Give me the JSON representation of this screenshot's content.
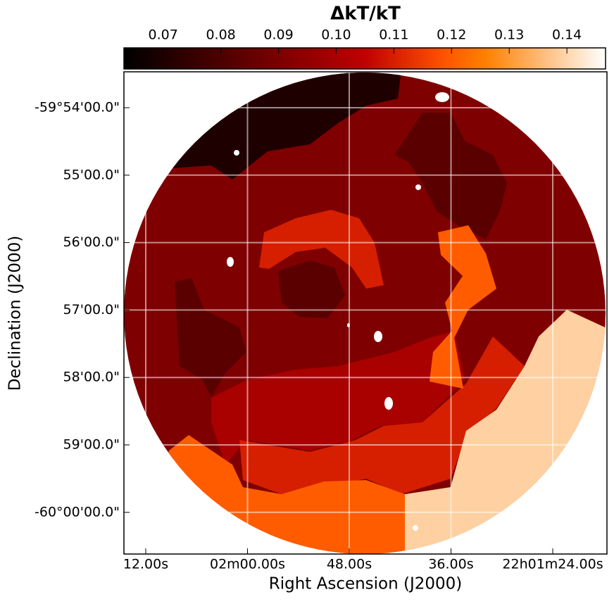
{
  "chart_data": {
    "type": "map",
    "xlabel": "Right Ascension (J2000)",
    "ylabel": "Declination (J2000)",
    "xtick_labels": [
      "12.00s",
      "02m00.00s",
      "48.00s",
      "36.00s",
      "22h01m24.00s"
    ],
    "ytick_labels": [
      "-59°54'00.0\"",
      "55'00.0\"",
      "56'00.0\"",
      "57'00.0\"",
      "58'00.0\"",
      "59'00.0\"",
      "-60°00'00.0\""
    ],
    "grid": true,
    "colormap": "gist_heat",
    "colorbar": {
      "label": "ΔkT/kT",
      "lim": [
        0.0632,
        0.1467
      ],
      "ticks": [
        0.07,
        0.08,
        0.09,
        {
          "value": 0.1,
          "label": "0.10"
        },
        0.11,
        0.12,
        0.13,
        0.14
      ]
    },
    "region_values": [
      0.091,
      0.07,
      0.083,
      0.083,
      0.083,
      0.1,
      0.11,
      0.11,
      0.12,
      0.12,
      0.139
    ]
  }
}
